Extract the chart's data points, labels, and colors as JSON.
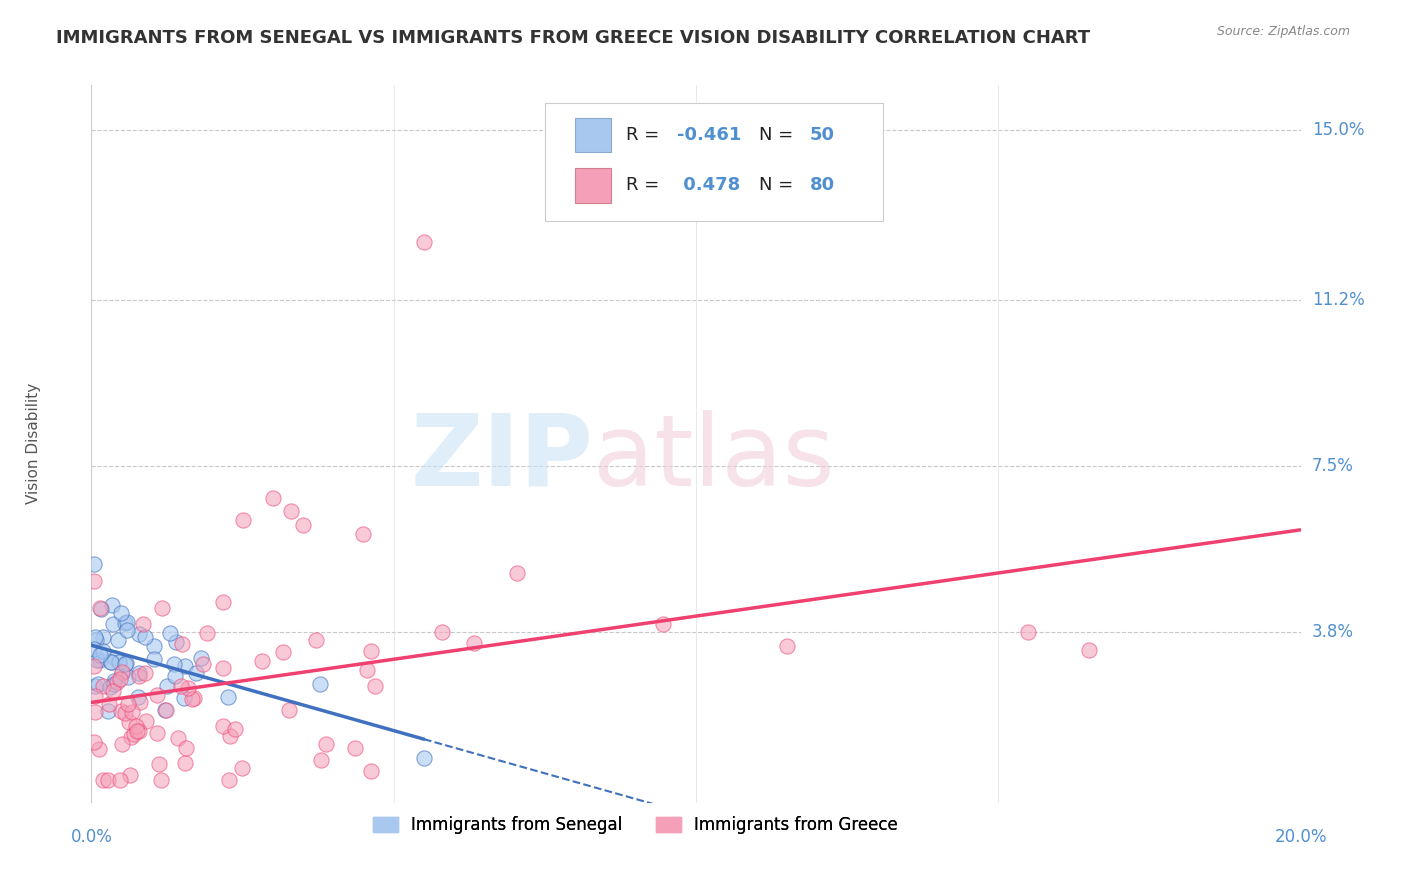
{
  "title": "IMMIGRANTS FROM SENEGAL VS IMMIGRANTS FROM GREECE VISION DISABILITY CORRELATION CHART",
  "source": "Source: ZipAtlas.com",
  "ylabel": "Vision Disability",
  "xmin": 0.0,
  "xmax": 0.2,
  "ymin": 0.0,
  "ymax": 0.16,
  "yticks": [
    0.038,
    0.075,
    0.112,
    0.15
  ],
  "ytick_labels": [
    "3.8%",
    "7.5%",
    "11.2%",
    "15.0%"
  ],
  "color_senegal": "#a8c8f0",
  "color_greece": "#f4a0b8",
  "color_line_senegal": "#4070c0",
  "color_line_greece": "#f04070",
  "color_axis_labels": "#5090d0",
  "senegal_R": "-0.461",
  "senegal_N": "50",
  "greece_R": "0.478",
  "greece_N": "80"
}
